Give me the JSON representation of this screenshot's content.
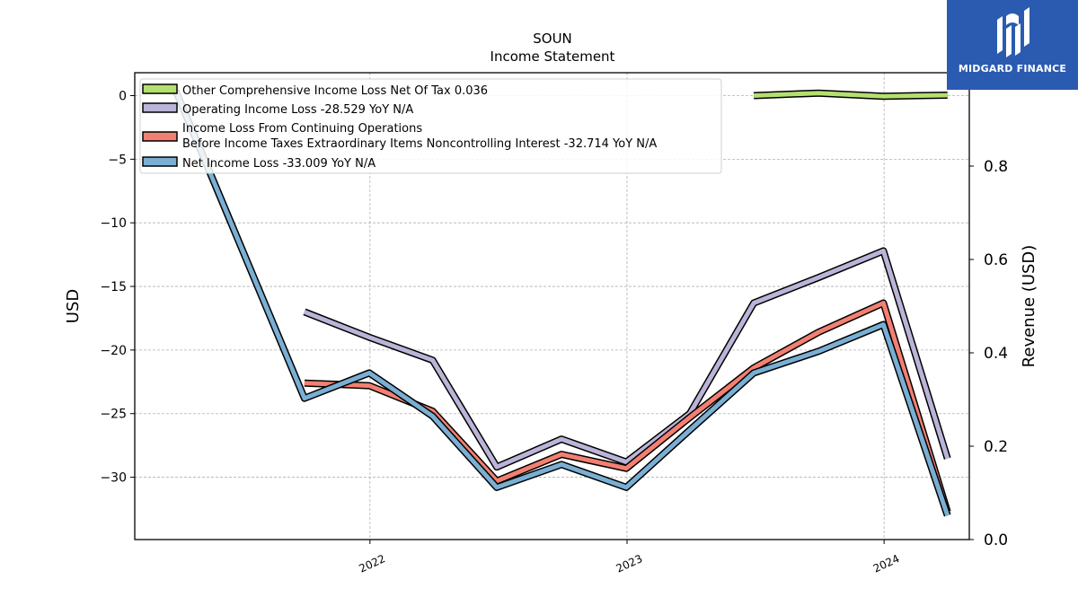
{
  "logo": {
    "name": "MIDGARD FINANCE"
  },
  "chart_data": {
    "type": "line",
    "title": "SOUN",
    "subtitle": "Income Statement",
    "ylabel": "USD",
    "y2label": "Revenue (USD)",
    "ylim": [
      -34.9,
      1.8
    ],
    "y2lim": [
      0.0,
      1.0
    ],
    "yticks": [
      0,
      -5,
      -10,
      -15,
      -20,
      -25,
      -30
    ],
    "y2ticks": [
      0.0,
      0.2,
      0.4,
      0.6,
      0.8
    ],
    "xlim": [
      "2021-02-01",
      "2024-05-01"
    ],
    "xticks": [
      "2022-01-01",
      "2023-01-01",
      "2024-01-01"
    ],
    "xticklabels": [
      "2022",
      "2023",
      "2024"
    ],
    "grid": true,
    "legend_position": "top-left",
    "series": [
      {
        "name": "Other Comprehensive Income Loss Net Of Tax  0.036",
        "color": "#b5df6f",
        "points": [
          [
            "2023-06-30",
            0.0
          ],
          [
            "2023-09-30",
            0.2
          ],
          [
            "2023-12-31",
            -0.05
          ],
          [
            "2024-03-31",
            0.036
          ]
        ]
      },
      {
        "name": "Operating Income Loss  -28.529 YoY N/A",
        "color": "#bbb4d8",
        "points": [
          [
            "2021-09-30",
            -17.0
          ],
          [
            "2021-12-31",
            -19.0
          ],
          [
            "2022-03-31",
            -20.8
          ],
          [
            "2022-06-30",
            -29.2
          ],
          [
            "2022-09-30",
            -27.0
          ],
          [
            "2022-12-31",
            -28.8
          ],
          [
            "2023-03-31",
            -25.0
          ],
          [
            "2023-06-30",
            -16.3
          ],
          [
            "2023-09-30",
            -14.3
          ],
          [
            "2023-12-31",
            -12.2
          ],
          [
            "2024-03-31",
            -28.529
          ]
        ]
      },
      {
        "name": "Income Loss From Continuing Operations\nBefore Income Taxes Extraordinary Items Noncontrolling Interest  -32.714 YoY N/A",
        "color": "#f28072",
        "points": [
          [
            "2021-09-30",
            -22.6
          ],
          [
            "2021-12-31",
            -22.8
          ],
          [
            "2022-03-31",
            -24.8
          ],
          [
            "2022-06-30",
            -30.3
          ],
          [
            "2022-09-30",
            -28.2
          ],
          [
            "2022-12-31",
            -29.3
          ],
          [
            "2023-03-31",
            -25.3
          ],
          [
            "2023-06-30",
            -21.4
          ],
          [
            "2023-09-30",
            -18.6
          ],
          [
            "2023-12-31",
            -16.3
          ],
          [
            "2024-03-31",
            -32.714
          ]
        ]
      },
      {
        "name": "Net Income Loss  -33.009 YoY N/A",
        "color": "#7aafd4",
        "points": [
          [
            "2021-03-31",
            0.4
          ],
          [
            "2021-09-30",
            -23.8
          ],
          [
            "2021-12-31",
            -21.8
          ],
          [
            "2022-03-31",
            -25.2
          ],
          [
            "2022-06-30",
            -30.8
          ],
          [
            "2022-09-30",
            -29.0
          ],
          [
            "2022-12-31",
            -30.8
          ],
          [
            "2023-03-31",
            -26.3
          ],
          [
            "2023-06-30",
            -21.8
          ],
          [
            "2023-09-30",
            -20.1
          ],
          [
            "2023-12-31",
            -18.0
          ],
          [
            "2024-03-31",
            -33.009
          ]
        ]
      }
    ]
  }
}
